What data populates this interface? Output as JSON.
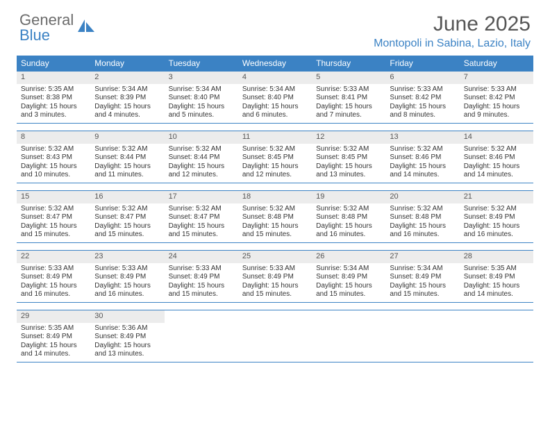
{
  "brand": {
    "part1": "General",
    "part2": "Blue"
  },
  "title": "June 2025",
  "location": "Montopoli in Sabina, Lazio, Italy",
  "colors": {
    "accent": "#3b82c4",
    "header_text": "#555555",
    "body_text": "#333333",
    "daynum_bg": "#ececec",
    "background": "#ffffff"
  },
  "daysOfWeek": [
    "Sunday",
    "Monday",
    "Tuesday",
    "Wednesday",
    "Thursday",
    "Friday",
    "Saturday"
  ],
  "weeks": [
    [
      {
        "n": "1",
        "sr": "Sunrise: 5:35 AM",
        "ss": "Sunset: 8:38 PM",
        "d1": "Daylight: 15 hours",
        "d2": "and 3 minutes."
      },
      {
        "n": "2",
        "sr": "Sunrise: 5:34 AM",
        "ss": "Sunset: 8:39 PM",
        "d1": "Daylight: 15 hours",
        "d2": "and 4 minutes."
      },
      {
        "n": "3",
        "sr": "Sunrise: 5:34 AM",
        "ss": "Sunset: 8:40 PM",
        "d1": "Daylight: 15 hours",
        "d2": "and 5 minutes."
      },
      {
        "n": "4",
        "sr": "Sunrise: 5:34 AM",
        "ss": "Sunset: 8:40 PM",
        "d1": "Daylight: 15 hours",
        "d2": "and 6 minutes."
      },
      {
        "n": "5",
        "sr": "Sunrise: 5:33 AM",
        "ss": "Sunset: 8:41 PM",
        "d1": "Daylight: 15 hours",
        "d2": "and 7 minutes."
      },
      {
        "n": "6",
        "sr": "Sunrise: 5:33 AM",
        "ss": "Sunset: 8:42 PM",
        "d1": "Daylight: 15 hours",
        "d2": "and 8 minutes."
      },
      {
        "n": "7",
        "sr": "Sunrise: 5:33 AM",
        "ss": "Sunset: 8:42 PM",
        "d1": "Daylight: 15 hours",
        "d2": "and 9 minutes."
      }
    ],
    [
      {
        "n": "8",
        "sr": "Sunrise: 5:32 AM",
        "ss": "Sunset: 8:43 PM",
        "d1": "Daylight: 15 hours",
        "d2": "and 10 minutes."
      },
      {
        "n": "9",
        "sr": "Sunrise: 5:32 AM",
        "ss": "Sunset: 8:44 PM",
        "d1": "Daylight: 15 hours",
        "d2": "and 11 minutes."
      },
      {
        "n": "10",
        "sr": "Sunrise: 5:32 AM",
        "ss": "Sunset: 8:44 PM",
        "d1": "Daylight: 15 hours",
        "d2": "and 12 minutes."
      },
      {
        "n": "11",
        "sr": "Sunrise: 5:32 AM",
        "ss": "Sunset: 8:45 PM",
        "d1": "Daylight: 15 hours",
        "d2": "and 12 minutes."
      },
      {
        "n": "12",
        "sr": "Sunrise: 5:32 AM",
        "ss": "Sunset: 8:45 PM",
        "d1": "Daylight: 15 hours",
        "d2": "and 13 minutes."
      },
      {
        "n": "13",
        "sr": "Sunrise: 5:32 AM",
        "ss": "Sunset: 8:46 PM",
        "d1": "Daylight: 15 hours",
        "d2": "and 14 minutes."
      },
      {
        "n": "14",
        "sr": "Sunrise: 5:32 AM",
        "ss": "Sunset: 8:46 PM",
        "d1": "Daylight: 15 hours",
        "d2": "and 14 minutes."
      }
    ],
    [
      {
        "n": "15",
        "sr": "Sunrise: 5:32 AM",
        "ss": "Sunset: 8:47 PM",
        "d1": "Daylight: 15 hours",
        "d2": "and 15 minutes."
      },
      {
        "n": "16",
        "sr": "Sunrise: 5:32 AM",
        "ss": "Sunset: 8:47 PM",
        "d1": "Daylight: 15 hours",
        "d2": "and 15 minutes."
      },
      {
        "n": "17",
        "sr": "Sunrise: 5:32 AM",
        "ss": "Sunset: 8:47 PM",
        "d1": "Daylight: 15 hours",
        "d2": "and 15 minutes."
      },
      {
        "n": "18",
        "sr": "Sunrise: 5:32 AM",
        "ss": "Sunset: 8:48 PM",
        "d1": "Daylight: 15 hours",
        "d2": "and 15 minutes."
      },
      {
        "n": "19",
        "sr": "Sunrise: 5:32 AM",
        "ss": "Sunset: 8:48 PM",
        "d1": "Daylight: 15 hours",
        "d2": "and 16 minutes."
      },
      {
        "n": "20",
        "sr": "Sunrise: 5:32 AM",
        "ss": "Sunset: 8:48 PM",
        "d1": "Daylight: 15 hours",
        "d2": "and 16 minutes."
      },
      {
        "n": "21",
        "sr": "Sunrise: 5:32 AM",
        "ss": "Sunset: 8:49 PM",
        "d1": "Daylight: 15 hours",
        "d2": "and 16 minutes."
      }
    ],
    [
      {
        "n": "22",
        "sr": "Sunrise: 5:33 AM",
        "ss": "Sunset: 8:49 PM",
        "d1": "Daylight: 15 hours",
        "d2": "and 16 minutes."
      },
      {
        "n": "23",
        "sr": "Sunrise: 5:33 AM",
        "ss": "Sunset: 8:49 PM",
        "d1": "Daylight: 15 hours",
        "d2": "and 16 minutes."
      },
      {
        "n": "24",
        "sr": "Sunrise: 5:33 AM",
        "ss": "Sunset: 8:49 PM",
        "d1": "Daylight: 15 hours",
        "d2": "and 15 minutes."
      },
      {
        "n": "25",
        "sr": "Sunrise: 5:33 AM",
        "ss": "Sunset: 8:49 PM",
        "d1": "Daylight: 15 hours",
        "d2": "and 15 minutes."
      },
      {
        "n": "26",
        "sr": "Sunrise: 5:34 AM",
        "ss": "Sunset: 8:49 PM",
        "d1": "Daylight: 15 hours",
        "d2": "and 15 minutes."
      },
      {
        "n": "27",
        "sr": "Sunrise: 5:34 AM",
        "ss": "Sunset: 8:49 PM",
        "d1": "Daylight: 15 hours",
        "d2": "and 15 minutes."
      },
      {
        "n": "28",
        "sr": "Sunrise: 5:35 AM",
        "ss": "Sunset: 8:49 PM",
        "d1": "Daylight: 15 hours",
        "d2": "and 14 minutes."
      }
    ],
    [
      {
        "n": "29",
        "sr": "Sunrise: 5:35 AM",
        "ss": "Sunset: 8:49 PM",
        "d1": "Daylight: 15 hours",
        "d2": "and 14 minutes."
      },
      {
        "n": "30",
        "sr": "Sunrise: 5:36 AM",
        "ss": "Sunset: 8:49 PM",
        "d1": "Daylight: 15 hours",
        "d2": "and 13 minutes."
      },
      {
        "empty": true
      },
      {
        "empty": true
      },
      {
        "empty": true
      },
      {
        "empty": true
      },
      {
        "empty": true
      }
    ]
  ]
}
